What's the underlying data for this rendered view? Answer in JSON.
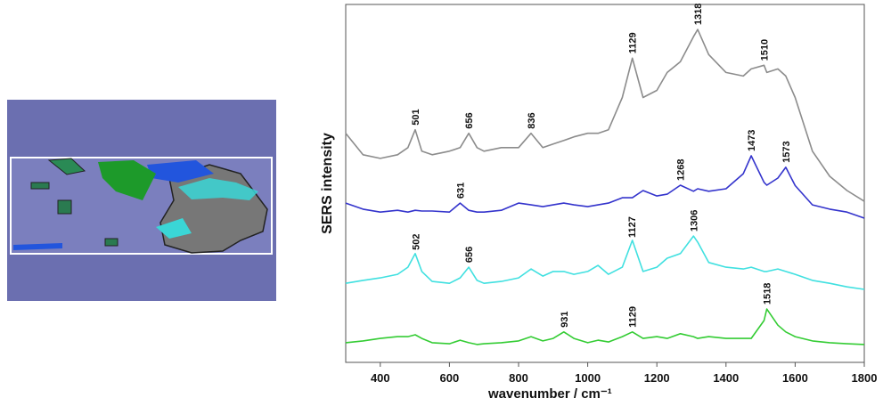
{
  "chart_data": {
    "type": "line",
    "xlabel": "wavenumber / cm⁻¹",
    "ylabel": "SERS intensity",
    "x": [
      300,
      350,
      400,
      450,
      480,
      501,
      520,
      550,
      600,
      631,
      656,
      680,
      700,
      750,
      800,
      836,
      870,
      900,
      931,
      960,
      1000,
      1030,
      1060,
      1100,
      1129,
      1160,
      1200,
      1230,
      1268,
      1306,
      1318,
      1350,
      1400,
      1450,
      1473,
      1510,
      1518,
      1550,
      1573,
      1600,
      1650,
      1700,
      1750,
      1800
    ],
    "xlim": [
      300,
      1800
    ],
    "xticks": [
      400,
      600,
      800,
      1000,
      1200,
      1400,
      1600,
      1800
    ],
    "ylim": [
      0,
      100
    ],
    "series": [
      {
        "color": "#8c8c8c",
        "peaks": [
          501,
          656,
          836,
          1129,
          1318,
          1510
        ],
        "values": [
          64,
          58,
          57,
          58,
          60,
          65,
          59,
          58,
          59,
          60,
          64,
          60,
          59,
          60,
          60,
          64,
          60,
          61,
          62,
          63,
          64,
          64,
          65,
          74,
          85,
          74,
          76,
          81,
          84,
          91,
          93,
          86,
          81,
          80,
          82,
          83,
          81,
          82,
          80,
          74,
          59,
          52,
          48,
          45
        ]
      },
      {
        "color": "#3333cc",
        "peaks": [
          631,
          1268,
          1473,
          1573
        ],
        "values": [
          44.5,
          42.8,
          42,
          42.5,
          42,
          42.5,
          42.3,
          42.3,
          42,
          44.5,
          42.5,
          42,
          42,
          42.5,
          44.5,
          44,
          43.5,
          44,
          44.5,
          44,
          43.5,
          44,
          44.5,
          46,
          46,
          48,
          46.5,
          47,
          49.5,
          47.8,
          48.5,
          47.8,
          48.5,
          52.7,
          57.7,
          50.3,
          49.5,
          51.5,
          54.5,
          49.4,
          44,
          42.8,
          42,
          40.3
        ]
      },
      {
        "color": "#40e0e0",
        "peaks": [
          502,
          656,
          1127,
          1306
        ],
        "values": [
          22.1,
          22.9,
          23.6,
          24.6,
          26.6,
          30.4,
          25.4,
          22.6,
          22.1,
          23.6,
          26.6,
          22.9,
          22.1,
          22.6,
          23.6,
          26.1,
          24.1,
          25.4,
          25.4,
          24.6,
          25.4,
          27.1,
          24.6,
          26.6,
          34.1,
          25.4,
          26.6,
          29.1,
          30.4,
          35.3,
          33.6,
          27.9,
          26.6,
          26.1,
          26.6,
          25.4,
          25.4,
          26.1,
          25.4,
          24.6,
          22.9,
          22.1,
          21.1,
          20.4
        ]
      },
      {
        "color": "#33cc33",
        "peaks": [
          931,
          1129,
          1518
        ],
        "values": [
          5.5,
          6,
          6.7,
          7.2,
          7.2,
          7.7,
          6.7,
          5.5,
          5.2,
          6.2,
          5.5,
          5,
          5.2,
          5.5,
          6,
          7.2,
          6,
          6.7,
          8.5,
          6.7,
          5.5,
          6.2,
          5.7,
          7.2,
          8.5,
          6.7,
          7.2,
          6.7,
          8,
          7.2,
          6.7,
          7.2,
          6.7,
          6.7,
          6.7,
          11.7,
          14.9,
          10.4,
          8.5,
          7.2,
          6,
          5.5,
          5.2,
          5
        ]
      }
    ]
  }
}
